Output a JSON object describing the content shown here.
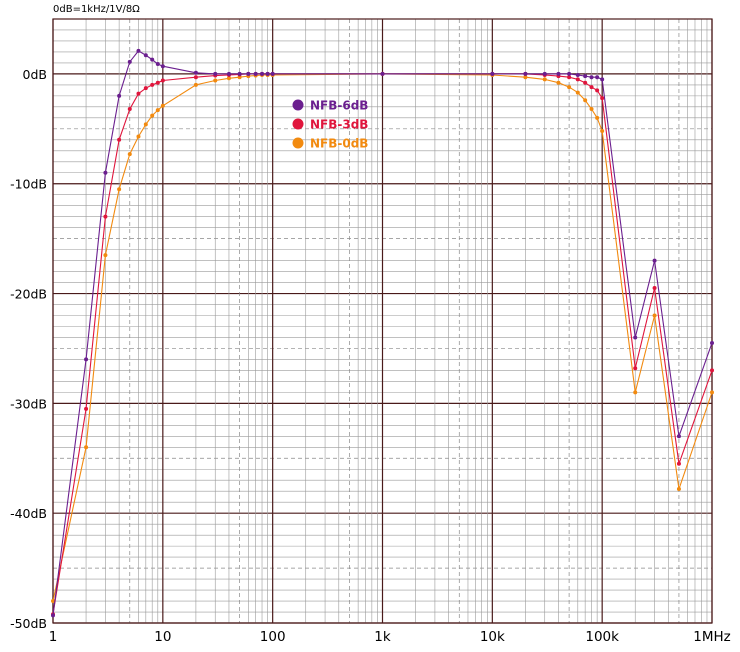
{
  "chart_data": {
    "type": "line",
    "title": "",
    "note": "0dB=1kHz/1V/8Ω",
    "xlabel": "",
    "ylabel": "",
    "x_scale": "log",
    "xlim": [
      1,
      1000000
    ],
    "ylim": [
      -50,
      5
    ],
    "grid": true,
    "legend_position": "top-center",
    "x_ticks": [
      {
        "value": 1,
        "label": "1"
      },
      {
        "value": 10,
        "label": "10"
      },
      {
        "value": 100,
        "label": "100"
      },
      {
        "value": 1000,
        "label": "1k"
      },
      {
        "value": 10000,
        "label": "10k"
      },
      {
        "value": 100000,
        "label": "100k"
      },
      {
        "value": 1000000,
        "label": "1MHz"
      }
    ],
    "y_ticks": [
      {
        "value": 0,
        "label": "0dB"
      },
      {
        "value": -10,
        "label": "-10dB"
      },
      {
        "value": -20,
        "label": "-20dB"
      },
      {
        "value": -30,
        "label": "-30dB"
      },
      {
        "value": -40,
        "label": "-40dB"
      },
      {
        "value": -50,
        "label": "-50dB"
      }
    ],
    "series": [
      {
        "name": "NFB-6dB",
        "color": "#6b1f8f",
        "points": [
          [
            1,
            -49.3
          ],
          [
            2,
            -26
          ],
          [
            3,
            -9
          ],
          [
            4,
            -2
          ],
          [
            5,
            1.1
          ],
          [
            6,
            2.1
          ],
          [
            7,
            1.7
          ],
          [
            8,
            1.3
          ],
          [
            9,
            0.9
          ],
          [
            10,
            0.7
          ],
          [
            20,
            0.1
          ],
          [
            30,
            0
          ],
          [
            40,
            0
          ],
          [
            50,
            0
          ],
          [
            60,
            0
          ],
          [
            70,
            0
          ],
          [
            80,
            0
          ],
          [
            90,
            0
          ],
          [
            100,
            0
          ],
          [
            1000,
            0
          ],
          [
            10000,
            0
          ],
          [
            20000,
            0
          ],
          [
            30000,
            0
          ],
          [
            40000,
            0
          ],
          [
            50000,
            0
          ],
          [
            60000,
            -0.1
          ],
          [
            70000,
            -0.2
          ],
          [
            80000,
            -0.3
          ],
          [
            90000,
            -0.3
          ],
          [
            100000,
            -0.5
          ],
          [
            200000,
            -24
          ],
          [
            300000,
            -17
          ],
          [
            500000,
            -33
          ],
          [
            1000000,
            -24.5
          ]
        ]
      },
      {
        "name": "NFB-3dB",
        "color": "#e0153c",
        "points": [
          [
            1,
            -49.2
          ],
          [
            2,
            -30.5
          ],
          [
            3,
            -13
          ],
          [
            4,
            -6
          ],
          [
            5,
            -3.2
          ],
          [
            6,
            -1.8
          ],
          [
            7,
            -1.3
          ],
          [
            8,
            -1
          ],
          [
            9,
            -0.8
          ],
          [
            10,
            -0.6
          ],
          [
            20,
            -0.3
          ],
          [
            30,
            -0.15
          ],
          [
            40,
            -0.1
          ],
          [
            50,
            -0.05
          ],
          [
            60,
            0
          ],
          [
            70,
            0
          ],
          [
            80,
            0
          ],
          [
            90,
            0
          ],
          [
            100,
            0
          ],
          [
            1000,
            0
          ],
          [
            10000,
            0
          ],
          [
            20000,
            0
          ],
          [
            30000,
            -0.1
          ],
          [
            40000,
            -0.2
          ],
          [
            50000,
            -0.3
          ],
          [
            60000,
            -0.5
          ],
          [
            70000,
            -0.8
          ],
          [
            80000,
            -1.2
          ],
          [
            90000,
            -1.5
          ],
          [
            100000,
            -2.2
          ],
          [
            200000,
            -26.8
          ],
          [
            300000,
            -19.5
          ],
          [
            500000,
            -35.5
          ],
          [
            1000000,
            -27
          ]
        ]
      },
      {
        "name": "NFB-0dB",
        "color": "#f28a0f",
        "points": [
          [
            1,
            -48
          ],
          [
            2,
            -34
          ],
          [
            3,
            -16.5
          ],
          [
            4,
            -10.5
          ],
          [
            5,
            -7.3
          ],
          [
            6,
            -5.7
          ],
          [
            7,
            -4.6
          ],
          [
            8,
            -3.8
          ],
          [
            9,
            -3.3
          ],
          [
            10,
            -2.9
          ],
          [
            20,
            -1
          ],
          [
            30,
            -0.6
          ],
          [
            40,
            -0.4
          ],
          [
            50,
            -0.3
          ],
          [
            60,
            -0.2
          ],
          [
            70,
            -0.15
          ],
          [
            80,
            -0.1
          ],
          [
            90,
            -0.1
          ],
          [
            100,
            -0.1
          ],
          [
            1000,
            0
          ],
          [
            10000,
            -0.1
          ],
          [
            20000,
            -0.3
          ],
          [
            30000,
            -0.5
          ],
          [
            40000,
            -0.8
          ],
          [
            50000,
            -1.2
          ],
          [
            60000,
            -1.7
          ],
          [
            70000,
            -2.4
          ],
          [
            80000,
            -3.2
          ],
          [
            90000,
            -4
          ],
          [
            100000,
            -5.2
          ],
          [
            200000,
            -29
          ],
          [
            300000,
            -22
          ],
          [
            500000,
            -37.8
          ],
          [
            1000000,
            -29
          ]
        ]
      }
    ]
  }
}
